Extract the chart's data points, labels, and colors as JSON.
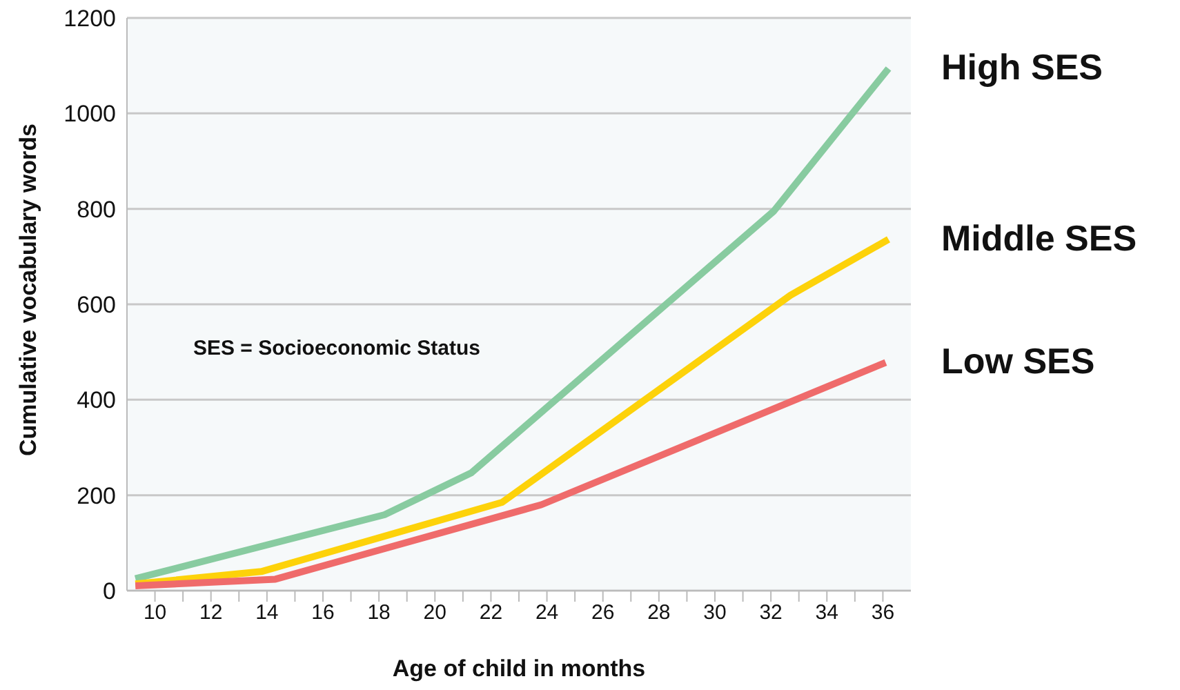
{
  "chart_data": {
    "type": "line",
    "xlabel": "Age of child in months",
    "ylabel": "Cumulative vocabulary words",
    "annotations": [
      "SES = Socioeconomic Status"
    ],
    "series": [
      {
        "name": "High SES",
        "color": "#88cba0",
        "x": [
          9.3,
          18.2,
          21.3,
          32.1,
          36.2
        ],
        "values": [
          25,
          159,
          247,
          795,
          1094
        ]
      },
      {
        "name": "Middle SES",
        "color": "#fdd20a",
        "x": [
          9.3,
          13.8,
          22.4,
          32.7,
          36.2
        ],
        "values": [
          14,
          40,
          185,
          619,
          736
        ]
      },
      {
        "name": "Low SES",
        "color": "#ef6b6b",
        "x": [
          9.3,
          14.3,
          23.8,
          36.1
        ],
        "values": [
          10,
          24,
          180,
          478
        ]
      }
    ],
    "xlim": [
      9,
      37
    ],
    "xticks": [
      10,
      {
        "value": 11,
        "label": null
      },
      12,
      {
        "value": 13,
        "label": null
      },
      14,
      {
        "value": 15,
        "label": null
      },
      16,
      {
        "value": 17,
        "label": null
      },
      18,
      {
        "value": 19,
        "label": null
      },
      20,
      {
        "value": 21,
        "label": null
      },
      22,
      {
        "value": 23,
        "label": null
      },
      24,
      {
        "value": 25,
        "label": null
      },
      26,
      {
        "value": 27,
        "label": null
      },
      28,
      {
        "value": 29,
        "label": null
      },
      30,
      {
        "value": 31,
        "label": null
      },
      32,
      {
        "value": 33,
        "label": null
      },
      34,
      {
        "value": 35,
        "label": null
      },
      36
    ],
    "ylim": [
      0,
      1200
    ],
    "yticks": [
      0,
      200,
      400,
      600,
      800,
      1000,
      1200
    ],
    "grid": "y",
    "legend": false,
    "marker": "none",
    "line_style": "solid"
  }
}
